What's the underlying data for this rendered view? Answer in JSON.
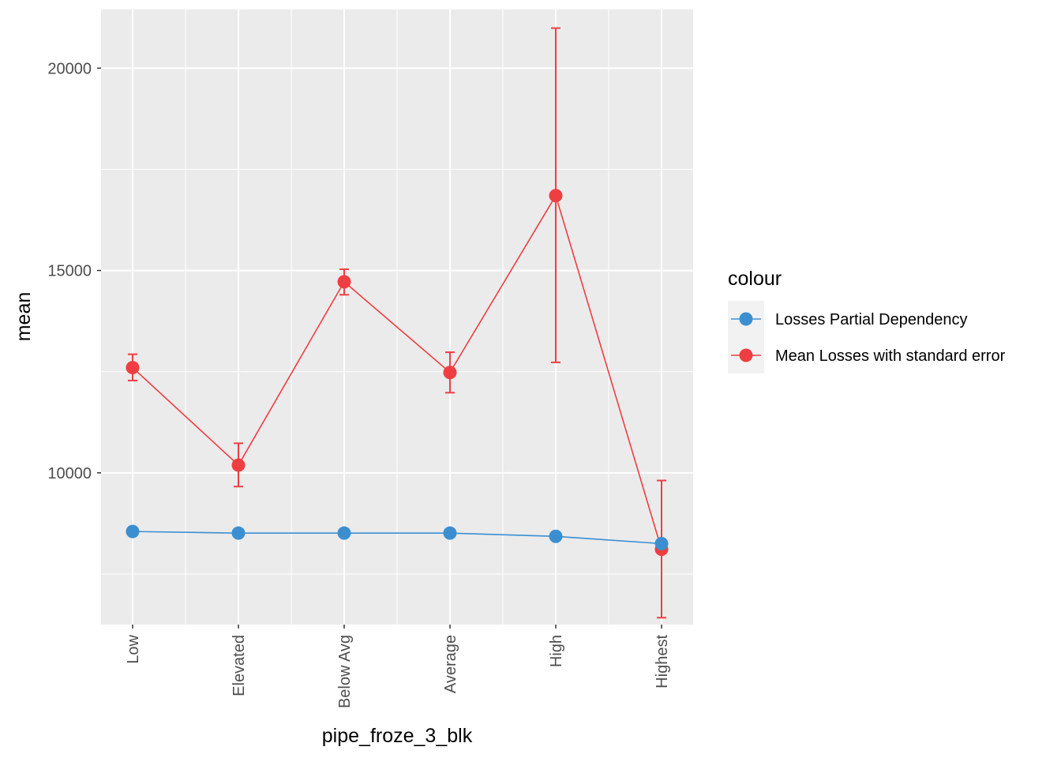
{
  "chart_data": {
    "type": "line",
    "xlabel": "pipe_froze_3_blk",
    "ylabel": "mean",
    "categories": [
      "Low",
      "Elevated",
      "Below Avg",
      "Average",
      "High",
      "Highest"
    ],
    "ylim": [
      6250,
      21450
    ],
    "yticks": [
      10000,
      15000,
      20000
    ],
    "ytick_labels": [
      "10000",
      "15000",
      "20000"
    ],
    "grid": true,
    "background": "#ebebeb",
    "legend": {
      "title": "colour",
      "placement": "right"
    },
    "series": [
      {
        "name": "Losses Partial Dependency",
        "color": "#3b8fd1",
        "values": [
          8550,
          8510,
          8510,
          8510,
          8430,
          8250
        ]
      },
      {
        "name": "Mean Losses with standard error",
        "color": "#ef3e42",
        "values": [
          12600,
          10190,
          14720,
          12480,
          16850,
          8110
        ],
        "error_low": [
          12280,
          9660,
          14400,
          11980,
          12730,
          6420
        ],
        "error_high": [
          12930,
          10730,
          15030,
          12980,
          20990,
          9810
        ]
      }
    ]
  }
}
